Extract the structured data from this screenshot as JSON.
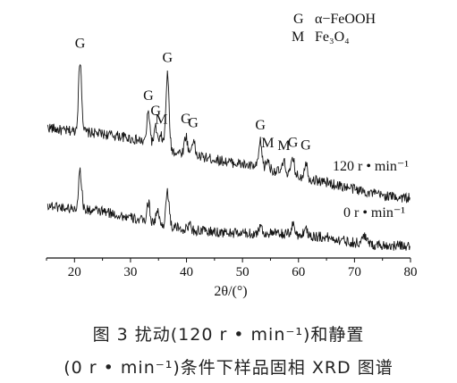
{
  "chart_data": {
    "type": "line",
    "xlabel": "2θ/(°)",
    "xlim": [
      15,
      80
    ],
    "xticks": [
      20,
      30,
      40,
      50,
      60,
      70,
      80
    ],
    "ylabel": "",
    "grid": false,
    "legend_position": "top-right",
    "legend": [
      {
        "symbol": "G",
        "text": "α−FeOOH"
      },
      {
        "symbol": "M",
        "text": "Fe₃O₄"
      }
    ],
    "series": [
      {
        "name": "120 r • min⁻¹",
        "baseline": [
          [
            15,
            55
          ],
          [
            18,
            52
          ],
          [
            20,
            52
          ],
          [
            24,
            50
          ],
          [
            28,
            48
          ],
          [
            32,
            44
          ],
          [
            36,
            38
          ],
          [
            40,
            34
          ],
          [
            45,
            30
          ],
          [
            50,
            26
          ],
          [
            55,
            22
          ],
          [
            60,
            17
          ],
          [
            65,
            12
          ],
          [
            70,
            7
          ],
          [
            75,
            2
          ],
          [
            80,
            0
          ]
        ],
        "peaks": [
          {
            "x": 21.0,
            "h": 55,
            "label": "G"
          },
          {
            "x": 33.2,
            "h": 24,
            "label": "G"
          },
          {
            "x": 34.5,
            "h": 14,
            "label": "G"
          },
          {
            "x": 35.5,
            "h": 9,
            "label": "M"
          },
          {
            "x": 36.6,
            "h": 58,
            "label": "G"
          },
          {
            "x": 39.9,
            "h": 14,
            "label": "G"
          },
          {
            "x": 41.2,
            "h": 12,
            "label": "G"
          },
          {
            "x": 53.2,
            "h": 20,
            "label": "G"
          },
          {
            "x": 54.5,
            "h": 7,
            "label": "M"
          },
          {
            "x": 57.4,
            "h": 8,
            "label": "M"
          },
          {
            "x": 59.0,
            "h": 12,
            "label": "G"
          },
          {
            "x": 61.3,
            "h": 12,
            "label": "G"
          }
        ]
      },
      {
        "name": "0 r • min⁻¹",
        "baseline": [
          [
            15,
            32
          ],
          [
            18,
            30
          ],
          [
            20,
            29
          ],
          [
            25,
            27
          ],
          [
            30,
            22
          ],
          [
            35,
            17
          ],
          [
            40,
            13
          ],
          [
            45,
            11
          ],
          [
            50,
            10
          ],
          [
            55,
            10
          ],
          [
            60,
            9
          ],
          [
            65,
            7
          ],
          [
            70,
            3
          ],
          [
            75,
            1
          ],
          [
            80,
            0
          ]
        ],
        "peaks": [
          {
            "x": 21.0,
            "h": 30
          },
          {
            "x": 33.2,
            "h": 15
          },
          {
            "x": 34.8,
            "h": 10
          },
          {
            "x": 36.6,
            "h": 27
          },
          {
            "x": 40.5,
            "h": 4
          },
          {
            "x": 53.2,
            "h": 6
          },
          {
            "x": 59.0,
            "h": 8
          },
          {
            "x": 61.3,
            "h": 6
          },
          {
            "x": 71.8,
            "h": 7
          }
        ]
      }
    ]
  },
  "caption": {
    "line1": "图 3   扰动(120 r • min⁻¹)和静置",
    "line2": "(0 r • min⁻¹)条件下样品固相 XRD 图谱"
  }
}
